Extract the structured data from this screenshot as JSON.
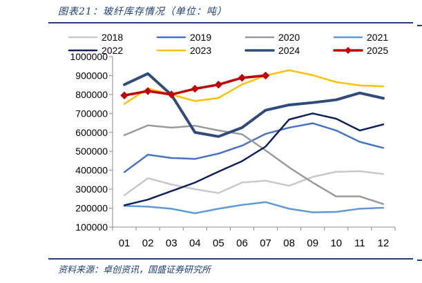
{
  "header": {
    "title": "图表21：玻纤库存情况（单位：吨）"
  },
  "footer": {
    "source": "资料来源：卓创资讯，国盛证券研究所"
  },
  "chart_data": {
    "type": "line",
    "title": "",
    "xlabel": "",
    "ylabel": "",
    "ylim": [
      100000,
      1000000
    ],
    "y_ticks": [
      "100000",
      "200000",
      "300000",
      "400000",
      "500000",
      "600000",
      "700000",
      "800000",
      "900000",
      "1000000"
    ],
    "categories": [
      "01",
      "02",
      "03",
      "04",
      "05",
      "06",
      "07",
      "08",
      "09",
      "10",
      "11",
      "12"
    ],
    "grid": false,
    "legend_position": "top",
    "series": [
      {
        "name": "2018",
        "color": "#c8c8c8",
        "width": 2.5,
        "marker": "none",
        "values": [
          268000,
          358000,
          325000,
          300000,
          280000,
          335000,
          345000,
          318000,
          365000,
          392000,
          395000,
          380000
        ]
      },
      {
        "name": "2019",
        "color": "#4472c4",
        "width": 2.5,
        "marker": "none",
        "values": [
          390000,
          482000,
          465000,
          460000,
          488000,
          530000,
          592000,
          625000,
          648000,
          610000,
          550000,
          518000
        ]
      },
      {
        "name": "2020",
        "color": "#999999",
        "width": 2.5,
        "marker": "none",
        "values": [
          585000,
          637000,
          625000,
          635000,
          610000,
          590000,
          505000,
          415000,
          335000,
          262000,
          262000,
          222000
        ]
      },
      {
        "name": "2021",
        "color": "#5b9bd5",
        "width": 2.5,
        "marker": "none",
        "values": [
          212000,
          208000,
          197000,
          173000,
          197000,
          217000,
          232000,
          197000,
          178000,
          180000,
          197000,
          202000
        ]
      },
      {
        "name": "2022",
        "color": "#0d1f5c",
        "width": 2.5,
        "marker": "none",
        "values": [
          215000,
          245000,
          290000,
          335000,
          393000,
          448000,
          525000,
          668000,
          700000,
          672000,
          610000,
          642000
        ]
      },
      {
        "name": "2023",
        "color": "#ffc000",
        "width": 2.5,
        "marker": "none",
        "values": [
          750000,
          832000,
          800000,
          765000,
          782000,
          853000,
          900000,
          928000,
          902000,
          865000,
          848000,
          843000
        ]
      },
      {
        "name": "2024",
        "color": "#2f4b7c",
        "width": 4,
        "marker": "none",
        "values": [
          852000,
          910000,
          798000,
          600000,
          578000,
          625000,
          717000,
          745000,
          757000,
          772000,
          808000,
          780000
        ]
      },
      {
        "name": "2025",
        "color": "#c00000",
        "width": 3.5,
        "marker": "diamond",
        "values": [
          795000,
          818000,
          800000,
          830000,
          852000,
          888000,
          900000,
          null,
          null,
          null,
          null,
          null
        ]
      }
    ]
  }
}
